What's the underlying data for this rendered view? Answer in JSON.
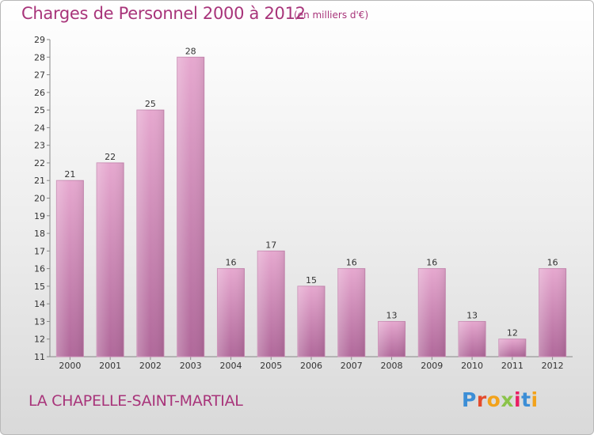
{
  "header": {
    "title": "Charges de Personnel 2000 à 2012",
    "subtitle": "(en milliers d'€)"
  },
  "footer": {
    "commune": "LA CHAPELLE-SAINT-MARTIAL",
    "logo": "Proxiti"
  },
  "colors": {
    "title": "#a8347a",
    "bar_top": "#e6a8cf",
    "bar_bottom": "#b0689a",
    "logo_letters": [
      "#3c8ed6",
      "#e44b2d",
      "#f2a21b",
      "#8bc34a",
      "#e91e63",
      "#3c8ed6",
      "#f2a21b"
    ]
  },
  "chart_data": {
    "type": "bar",
    "categories": [
      "2000",
      "2001",
      "2002",
      "2003",
      "2004",
      "2005",
      "2006",
      "2007",
      "2008",
      "2009",
      "2010",
      "2011",
      "2012"
    ],
    "values": [
      21,
      22,
      25,
      28,
      16,
      17,
      15,
      16,
      13,
      16,
      13,
      12,
      16
    ],
    "ylim": [
      11,
      29
    ],
    "yticks": [
      11,
      12,
      13,
      14,
      15,
      16,
      17,
      18,
      19,
      20,
      21,
      22,
      23,
      24,
      25,
      26,
      27,
      28,
      29
    ],
    "grid": false,
    "data_labels": true
  }
}
